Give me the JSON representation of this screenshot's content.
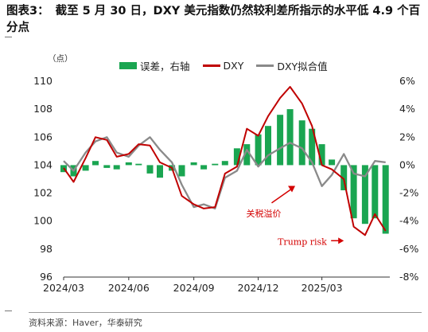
{
  "title": {
    "label": "图表3：",
    "text": "截至 5 月 30 日，DXY 美元指数仍然较利差所指示的水平低 4.9 个百分点"
  },
  "unit_label": "（点）",
  "source": "资料来源：Haver，华泰研究",
  "colors": {
    "residual": "#1aa551",
    "dxy": "#c00000",
    "fit": "#8a8a8a"
  },
  "chart_data": {
    "type": "line",
    "x_ticks": [
      "2024/03",
      "2024/06",
      "2024/09",
      "2024/12",
      "2025/03"
    ],
    "x_range": [
      "2024-03-01",
      "2025-06-05"
    ],
    "y_left": {
      "range": [
        96,
        110
      ],
      "ticks": [
        96,
        98,
        100,
        102,
        104,
        106,
        108,
        110
      ]
    },
    "y_right": {
      "range": [
        -8,
        6
      ],
      "ticks": [
        "6%",
        "4%",
        "2%",
        "0%",
        "-2%",
        "-4%",
        "-6%",
        "-8%"
      ]
    },
    "legend": [
      "误差，右轴",
      "DXY",
      "DXY拟合值"
    ],
    "annotations": [
      "关税溢价",
      "Trump risk"
    ],
    "series": [
      {
        "name": "误差，右轴",
        "kind": "bar",
        "axis": "right",
        "x": [
          "2024-03-01",
          "2024-03-15",
          "2024-04-01",
          "2024-04-15",
          "2024-05-01",
          "2024-05-15",
          "2024-06-01",
          "2024-06-15",
          "2024-07-01",
          "2024-07-15",
          "2024-08-01",
          "2024-08-15",
          "2024-09-01",
          "2024-09-15",
          "2024-10-01",
          "2024-10-15",
          "2024-11-01",
          "2024-11-15",
          "2024-12-01",
          "2024-12-15",
          "2025-01-01",
          "2025-01-15",
          "2025-02-01",
          "2025-02-15",
          "2025-03-01",
          "2025-03-15",
          "2025-04-01",
          "2025-04-15",
          "2025-05-01",
          "2025-05-15",
          "2025-05-30"
        ],
        "values": [
          -0.5,
          -0.8,
          -0.4,
          0.3,
          -0.2,
          -0.3,
          0.2,
          0.1,
          -0.6,
          -0.9,
          -0.4,
          -0.8,
          0.2,
          -0.3,
          0.1,
          0.3,
          1.2,
          1.5,
          2.2,
          2.8,
          3.6,
          4.0,
          3.2,
          2.6,
          1.5,
          0.4,
          -1.8,
          -3.8,
          -4.2,
          -3.8,
          -4.9
        ]
      },
      {
        "name": "DXY",
        "kind": "line",
        "axis": "left",
        "x": [
          "2024-03-01",
          "2024-03-15",
          "2024-04-01",
          "2024-04-15",
          "2024-05-01",
          "2024-05-15",
          "2024-06-01",
          "2024-06-15",
          "2024-07-01",
          "2024-07-15",
          "2024-08-01",
          "2024-08-15",
          "2024-09-01",
          "2024-09-15",
          "2024-10-01",
          "2024-10-15",
          "2024-11-01",
          "2024-11-15",
          "2024-12-01",
          "2024-12-15",
          "2025-01-01",
          "2025-01-15",
          "2025-02-01",
          "2025-02-15",
          "2025-03-01",
          "2025-03-15",
          "2025-04-01",
          "2025-04-15",
          "2025-05-01",
          "2025-05-15",
          "2025-05-30"
        ],
        "values": [
          103.8,
          102.8,
          104.5,
          106.0,
          105.8,
          104.6,
          104.8,
          105.5,
          105.4,
          104.2,
          103.8,
          101.8,
          101.2,
          100.9,
          101.0,
          103.4,
          103.9,
          106.6,
          106.1,
          107.5,
          108.8,
          109.6,
          108.4,
          106.8,
          104.0,
          103.7,
          103.0,
          99.6,
          99.0,
          100.5,
          99.3
        ]
      },
      {
        "name": "DXY拟合值",
        "kind": "line",
        "axis": "left",
        "x": [
          "2024-03-01",
          "2024-03-15",
          "2024-04-01",
          "2024-04-15",
          "2024-05-01",
          "2024-05-15",
          "2024-06-01",
          "2024-06-15",
          "2024-07-01",
          "2024-07-15",
          "2024-08-01",
          "2024-08-15",
          "2024-09-01",
          "2024-09-15",
          "2024-10-01",
          "2024-10-15",
          "2024-11-01",
          "2024-11-15",
          "2024-12-01",
          "2024-12-15",
          "2025-01-01",
          "2025-01-15",
          "2025-02-01",
          "2025-02-15",
          "2025-03-01",
          "2025-03-15",
          "2025-04-01",
          "2025-04-15",
          "2025-05-01",
          "2025-05-15",
          "2025-05-30"
        ],
        "values": [
          104.3,
          103.6,
          104.9,
          105.7,
          106.0,
          104.9,
          104.6,
          105.4,
          106.0,
          105.1,
          104.2,
          102.6,
          101.0,
          101.2,
          100.9,
          103.1,
          103.6,
          105.1,
          103.9,
          104.7,
          105.2,
          105.6,
          105.2,
          104.2,
          102.5,
          103.3,
          104.8,
          103.4,
          103.2,
          104.3,
          104.2
        ]
      }
    ]
  }
}
